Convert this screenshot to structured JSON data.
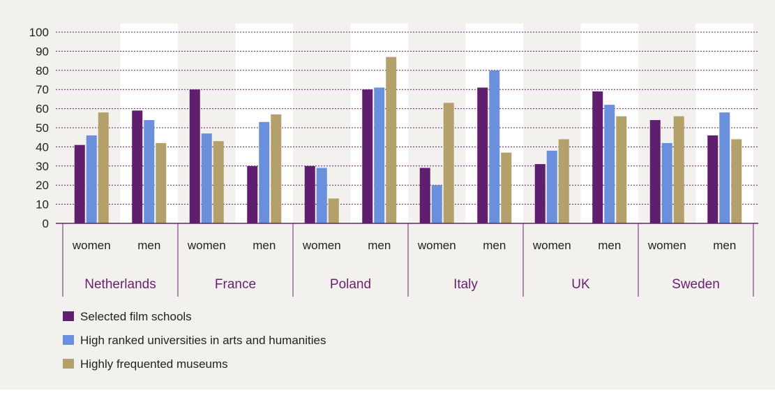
{
  "chart_data": {
    "type": "bar",
    "groups": [
      "Netherlands",
      "France",
      "Poland",
      "Italy",
      "UK",
      "Sweden"
    ],
    "subcategories": [
      "women",
      "men"
    ],
    "series": [
      {
        "name": "Selected film schools",
        "color": "#5f1f6e",
        "values": [
          [
            41,
            59
          ],
          [
            70,
            30
          ],
          [
            30,
            70
          ],
          [
            29,
            71
          ],
          [
            31,
            69
          ],
          [
            54,
            46
          ]
        ]
      },
      {
        "name": "High ranked universities in arts and humanities",
        "color": "#6a8fdc",
        "values": [
          [
            46,
            54
          ],
          [
            47,
            53
          ],
          [
            29,
            71
          ],
          [
            20,
            80
          ],
          [
            38,
            62
          ],
          [
            42,
            58
          ]
        ]
      },
      {
        "name": "Highly frequented museums",
        "color": "#b3a06b",
        "values": [
          [
            58,
            42
          ],
          [
            43,
            57
          ],
          [
            13,
            87
          ],
          [
            63,
            37
          ],
          [
            44,
            56
          ],
          [
            56,
            44
          ]
        ]
      }
    ],
    "y_ticks": [
      "0",
      "10",
      "20",
      "30",
      "40",
      "50",
      "60",
      "70",
      "80",
      "90",
      "100"
    ],
    "ylim": [
      0,
      100
    ],
    "grid": true,
    "legend_position": "bottom-left",
    "background_color": "#f2f1ee",
    "plot_band_color": "#ffffff",
    "axis_color": "#6a1f6f",
    "country_label_color": "#6a1f6f"
  }
}
